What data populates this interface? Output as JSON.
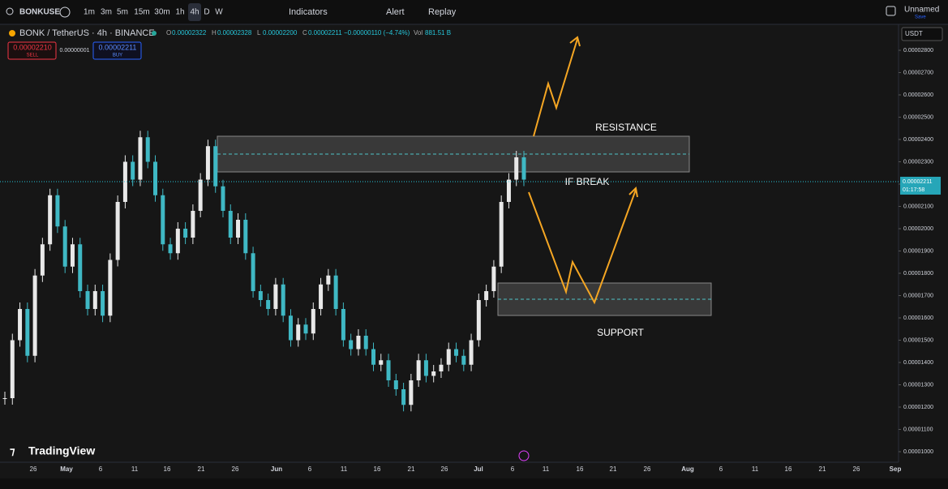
{
  "toolbar": {
    "symbol": "BONKUSE",
    "intervals": [
      "1m",
      "3m",
      "5m",
      "15m",
      "30m",
      "1h",
      "4h",
      "D",
      "W"
    ],
    "active_interval": "4h",
    "indicators": "Indicators",
    "alert": "Alert",
    "replay": "Replay",
    "layout_name": "Unnamed",
    "save": "Save"
  },
  "legend": {
    "title": "BONK / TetherUS · 4h · BINANCE",
    "ohlc": [
      {
        "k": "O",
        "v": "0.00002322"
      },
      {
        "k": "H",
        "v": "0.00002328"
      },
      {
        "k": "L",
        "v": "0.00002200"
      },
      {
        "k": "C",
        "v": "0.00002211"
      }
    ],
    "change": "−0.00000110 (−4.74%)",
    "vol_key": "Vol",
    "vol": "881.51 B",
    "sell_price": "0.00002210",
    "sell": "SELL",
    "spread": "0.00000001",
    "buy_price": "0.00002211",
    "buy": "BUY"
  },
  "currency": "USDT",
  "chart": {
    "closes": [
      1.24e-05,
      1.5e-05,
      1.64e-05,
      1.43e-05,
      1.79e-05,
      1.93e-05,
      2.15e-05,
      2.01e-05,
      1.83e-05,
      1.93e-05,
      1.72e-05,
      1.64e-05,
      1.72e-05,
      1.61e-05,
      1.86e-05,
      2.12e-05,
      2.3e-05,
      2.22e-05,
      2.41e-05,
      2.3e-05,
      2.15e-05,
      1.93e-05,
      1.89e-05,
      2e-05,
      1.96e-05,
      2.08e-05,
      2.22e-05,
      2.37e-05,
      2.19e-05,
      2.08e-05,
      1.96e-05,
      2.04e-05,
      1.89e-05,
      1.72e-05,
      1.68e-05,
      1.64e-05,
      1.75e-05,
      1.61e-05,
      1.5e-05,
      1.57e-05,
      1.53e-05,
      1.64e-05,
      1.75e-05,
      1.79e-05,
      1.64e-05,
      1.5e-05,
      1.46e-05,
      1.52e-05,
      1.46e-05,
      1.39e-05,
      1.41e-05,
      1.32e-05,
      1.28e-05,
      1.21e-05,
      1.32e-05,
      1.41e-05,
      1.34e-05,
      1.36e-05,
      1.39e-05,
      1.46e-05,
      1.43e-05,
      1.39e-05,
      1.5e-05,
      1.68e-05,
      1.72e-05,
      1.83e-05,
      2.12e-05,
      2.22e-05,
      2.32e-05,
      2.22e-05
    ],
    "price_ticks": [
      {
        "value": 2.8e-05,
        "label": "0.00002800"
      },
      {
        "value": 2.7e-05,
        "label": "0.00002700"
      },
      {
        "value": 2.6e-05,
        "label": "0.00002600"
      },
      {
        "value": 2.5e-05,
        "label": "0.00002500"
      },
      {
        "value": 2.4e-05,
        "label": "0.00002400"
      },
      {
        "value": 2.3e-05,
        "label": "0.00002300"
      },
      {
        "value": 2.2e-05,
        "label": "0.00002200"
      },
      {
        "value": 2.1e-05,
        "label": "0.00002100"
      },
      {
        "value": 2e-05,
        "label": "0.00002000"
      },
      {
        "value": 1.9e-05,
        "label": "0.00001900"
      },
      {
        "value": 1.8e-05,
        "label": "0.00001800"
      },
      {
        "value": 1.7e-05,
        "label": "0.00001700"
      },
      {
        "value": 1.6e-05,
        "label": "0.00001600"
      },
      {
        "value": 1.5e-05,
        "label": "0.00001500"
      },
      {
        "value": 1.4e-05,
        "label": "0.00001400"
      },
      {
        "value": 1.3e-05,
        "label": "0.00001300"
      },
      {
        "value": 1.2e-05,
        "label": "0.00001200"
      },
      {
        "value": 1.1e-05,
        "label": "0.00001100"
      },
      {
        "value": 1e-05,
        "label": "0.00001000"
      }
    ],
    "last_price": {
      "value": 2.211e-05,
      "label": "0.00002211"
    },
    "countdown": "01:17:58",
    "dates": [
      "26",
      "May",
      "6",
      "11",
      "16",
      "21",
      "26",
      "Jun",
      "6",
      "11",
      "16",
      "21",
      "26",
      "Jul",
      "6",
      "11",
      "16",
      "21",
      "26",
      "Aug",
      "6",
      "11",
      "16",
      "21",
      "26",
      "Sep"
    ],
    "annotations": {
      "resistance": "RESISTANCE",
      "if_break": "IF BREAK",
      "support": "SUPPORT"
    }
  },
  "brand": "TradingView"
}
